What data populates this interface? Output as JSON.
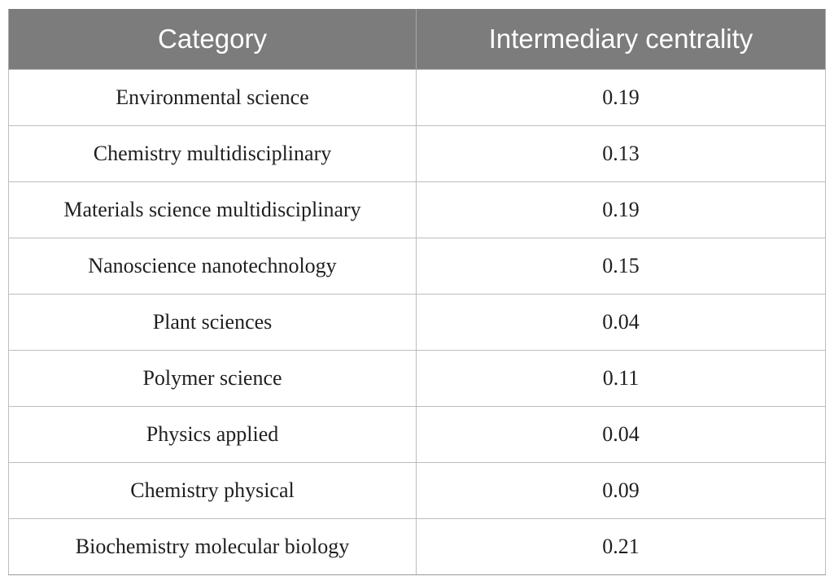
{
  "table": {
    "headers": [
      "Category",
      "Intermediary centrality"
    ],
    "rows": [
      {
        "category": "Environmental science",
        "value": "0.19"
      },
      {
        "category": "Chemistry multidisciplinary",
        "value": "0.13"
      },
      {
        "category": "Materials science multidisciplinary",
        "value": "0.19"
      },
      {
        "category": "Nanoscience nanotechnology",
        "value": "0.15"
      },
      {
        "category": "Plant sciences",
        "value": "0.04"
      },
      {
        "category": "Polymer science",
        "value": "0.11"
      },
      {
        "category": "Physics applied",
        "value": "0.04"
      },
      {
        "category": "Chemistry physical",
        "value": "0.09"
      },
      {
        "category": "Biochemistry molecular biology",
        "value": "0.21"
      }
    ],
    "colors": {
      "header_bg": "#7b7c7b",
      "header_text": "#ffffff",
      "grid": "#bdbdbd"
    }
  }
}
